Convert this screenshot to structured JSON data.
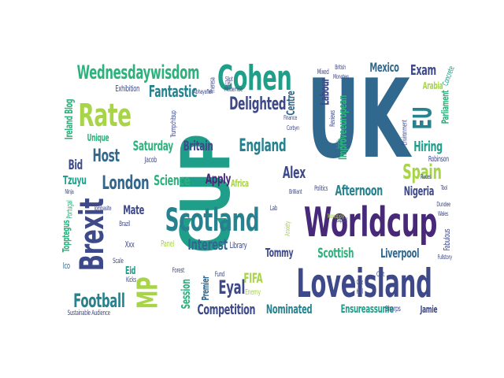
{
  "palette": {
    "lime": "#a8d44a",
    "green": "#2db27d",
    "teal": "#1f9e89",
    "sea": "#26828e",
    "blue": "#31688e",
    "indigo": "#3e4989",
    "purple": "#482878",
    "dark": "#440154"
  },
  "words": [
    {
      "text": "CUP",
      "color": "teal",
      "rot": -90
    },
    {
      "text": "UK",
      "color": "blue",
      "rot": 0
    },
    {
      "text": "Loveisland",
      "color": "indigo",
      "rot": 0
    },
    {
      "text": "Worldcup",
      "color": "purple",
      "rot": 0
    },
    {
      "text": "Scotland",
      "color": "sea",
      "rot": 0
    },
    {
      "text": "Cohen",
      "color": "teal",
      "rot": 0
    },
    {
      "text": "Brexit",
      "color": "indigo",
      "rot": -90
    },
    {
      "text": "Rate",
      "color": "lime",
      "rot": 0
    },
    {
      "text": "Wednesdaywisdom",
      "color": "green",
      "rot": 0
    },
    {
      "text": "MP",
      "color": "lime",
      "rot": -90
    },
    {
      "text": "EU",
      "color": "sea",
      "rot": -90
    },
    {
      "text": "London",
      "color": "blue",
      "rot": 0
    },
    {
      "text": "England",
      "color": "sea",
      "rot": 0
    },
    {
      "text": "Football",
      "color": "sea",
      "rot": 0
    },
    {
      "text": "Hiring",
      "color": "teal",
      "rot": 0
    },
    {
      "text": "Spain",
      "color": "lime",
      "rot": 0
    },
    {
      "text": "Delighted",
      "color": "indigo",
      "rot": 0
    },
    {
      "text": "Fantastic",
      "color": "sea",
      "rot": 0
    },
    {
      "text": "Host",
      "color": "blue",
      "rot": 0
    },
    {
      "text": "Alex",
      "color": "indigo",
      "rot": 0
    },
    {
      "text": "Afternoon",
      "color": "sea",
      "rot": 0
    },
    {
      "text": "Nigeria",
      "color": "indigo",
      "rot": 0
    },
    {
      "text": "Mexico",
      "color": "blue",
      "rot": 0
    },
    {
      "text": "Exam",
      "color": "indigo",
      "rot": 0
    },
    {
      "text": "Science",
      "color": "green",
      "rot": 0
    },
    {
      "text": "Apply",
      "color": "purple",
      "rot": 0
    },
    {
      "text": "Saturday",
      "color": "green",
      "rot": 0
    },
    {
      "text": "Britain",
      "color": "indigo",
      "rot": 0
    },
    {
      "text": "Labour",
      "color": "indigo",
      "rot": -90
    },
    {
      "text": "Improveeuropean",
      "color": "green",
      "rot": -90
    },
    {
      "text": "Competition",
      "color": "indigo",
      "rot": 0
    },
    {
      "text": "Eyal",
      "color": "indigo",
      "rot": 0
    },
    {
      "text": "FIFA",
      "color": "lime",
      "rot": 0
    },
    {
      "text": "Session",
      "color": "green",
      "rot": -90
    },
    {
      "text": "Interest",
      "color": "blue",
      "rot": 0
    },
    {
      "text": "Scottish",
      "color": "green",
      "rot": 0
    },
    {
      "text": "Liverpool",
      "color": "blue",
      "rot": 0
    },
    {
      "text": "Tommy",
      "color": "indigo",
      "rot": 0
    },
    {
      "text": "Mate",
      "color": "indigo",
      "rot": 0
    },
    {
      "text": "Ireland Blog",
      "color": "green",
      "rot": -90
    },
    {
      "text": "Bid",
      "color": "indigo",
      "rot": 0
    },
    {
      "text": "Tzuyu",
      "color": "teal",
      "rot": 0
    },
    {
      "text": "Nominated",
      "color": "sea",
      "rot": 0
    },
    {
      "text": "Ensureassume",
      "color": "teal",
      "rot": 0
    },
    {
      "text": "Centre",
      "color": "blue",
      "rot": -90
    },
    {
      "text": "Parliament",
      "color": "green",
      "rot": -90
    },
    {
      "text": "Unique",
      "color": "green",
      "rot": 0
    },
    {
      "text": "Exhibition",
      "color": "indigo",
      "rot": 0
    },
    {
      "text": "Africa",
      "color": "lime",
      "rot": 0
    },
    {
      "text": "Library",
      "color": "indigo",
      "rot": 0
    },
    {
      "text": "Enemy",
      "color": "lime",
      "rot": 0
    },
    {
      "text": "Premier",
      "color": "blue",
      "rot": -90
    },
    {
      "text": "Jamie",
      "color": "indigo",
      "rot": 0
    },
    {
      "text": "Sharps",
      "color": "indigo",
      "rot": 0
    },
    {
      "text": "Eid",
      "color": "teal",
      "rot": 0
    },
    {
      "text": "Ico",
      "color": "blue",
      "rot": 0
    },
    {
      "text": "Xxx",
      "color": "indigo",
      "rot": 0
    },
    {
      "text": "Kicks",
      "color": "indigo",
      "rot": 0
    },
    {
      "text": "Brilliant",
      "color": "indigo",
      "rot": 0
    },
    {
      "text": "Irish",
      "color": "green",
      "rot": -90
    },
    {
      "text": "Reviews",
      "color": "indigo",
      "rot": -90
    },
    {
      "text": "Mixed",
      "color": "indigo",
      "rot": 0
    },
    {
      "text": "Arabia",
      "color": "lime",
      "rot": 0
    },
    {
      "text": "Environment",
      "color": "indigo",
      "rot": -90
    },
    {
      "text": "Robinson",
      "color": "indigo",
      "rot": 0
    },
    {
      "text": "Lab",
      "color": "indigo",
      "rot": 0
    },
    {
      "text": "Panel",
      "color": "lime",
      "rot": 0
    },
    {
      "text": "Topptegus",
      "color": "green",
      "rot": -90
    },
    {
      "text": "Portugal",
      "color": "green",
      "rot": -90
    },
    {
      "text": "Sustainable Audience",
      "color": "indigo",
      "rot": 0
    },
    {
      "text": "Jacob",
      "color": "indigo",
      "rot": 0
    },
    {
      "text": "Theresa",
      "color": "indigo",
      "rot": -90
    },
    {
      "text": "Fabulous",
      "color": "indigo",
      "rot": -90
    },
    {
      "text": "Concrete",
      "color": "teal",
      "rot": -70
    },
    {
      "text": "Anxiety",
      "color": "lime",
      "rot": -90
    },
    {
      "text": "Brazil",
      "color": "indigo",
      "rot": 0
    },
    {
      "text": "Scale",
      "color": "indigo",
      "rot": 0
    },
    {
      "text": "Politics",
      "color": "indigo",
      "rot": 0
    },
    {
      "text": "Fund",
      "color": "indigo",
      "rot": 0
    },
    {
      "text": "Hal",
      "color": "indigo",
      "rot": 0
    },
    {
      "text": "Cult",
      "color": "indigo",
      "rot": 0
    },
    {
      "text": "Forest",
      "color": "indigo",
      "rot": 0
    },
    {
      "text": "Finance",
      "color": "indigo",
      "rot": 0
    },
    {
      "text": "Corbyn",
      "color": "indigo",
      "rot": 0
    },
    {
      "text": "Capital",
      "color": "indigo",
      "rot": 0
    },
    {
      "text": "Tool",
      "color": "indigo",
      "rot": 0
    },
    {
      "text": "Races",
      "color": "indigo",
      "rot": 0
    },
    {
      "text": "Monopoly",
      "color": "lime",
      "rot": 0
    },
    {
      "text": "Modernise",
      "color": "indigo",
      "rot": 0
    },
    {
      "text": "Tombasite",
      "color": "indigo",
      "rot": 0
    },
    {
      "text": "British",
      "color": "indigo",
      "rot": 0
    },
    {
      "text": "Monoteq",
      "color": "indigo",
      "rot": 0
    },
    {
      "text": "Uni",
      "color": "indigo",
      "rot": 0
    },
    {
      "text": "Cuz",
      "color": "indigo",
      "rot": 0
    },
    {
      "text": "Slipt",
      "color": "indigo",
      "rot": 0
    },
    {
      "text": "Ninja",
      "color": "indigo",
      "rot": 0
    },
    {
      "text": "Trumpchitsup",
      "color": "indigo",
      "rot": -90
    },
    {
      "text": "Abhayaflex",
      "color": "indigo",
      "rot": 0
    },
    {
      "text": "Fullstory",
      "color": "indigo",
      "rot": 0
    },
    {
      "text": "Wales",
      "color": "indigo",
      "rot": 0
    },
    {
      "text": "Dundee",
      "color": "indigo",
      "rot": 0
    }
  ]
}
